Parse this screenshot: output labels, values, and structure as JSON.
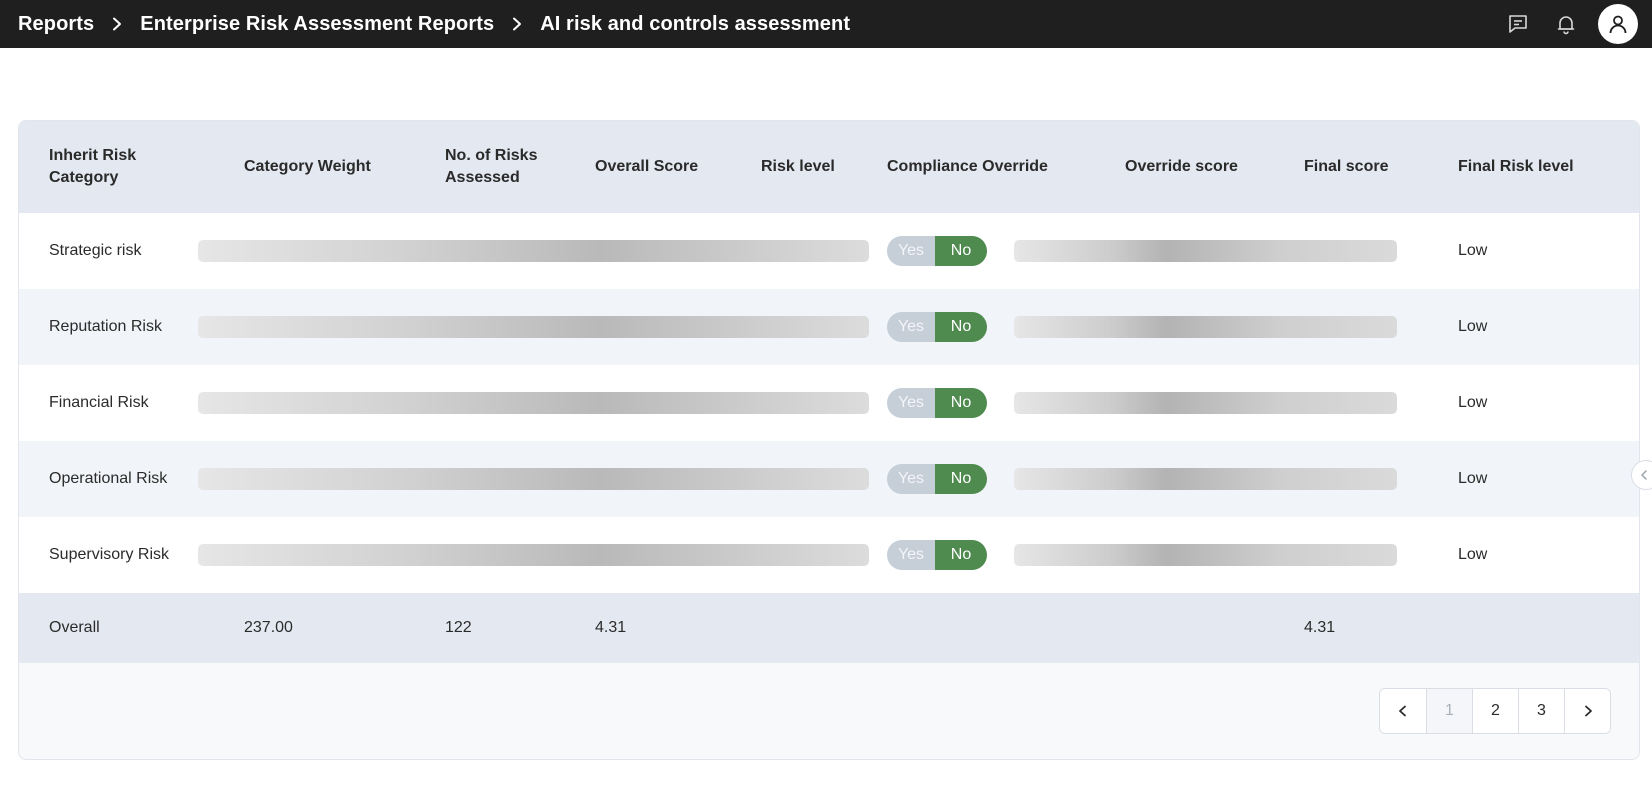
{
  "breadcrumb": {
    "items": [
      "Reports",
      "Enterprise Risk Assessment Reports",
      "AI risk and controls assessment"
    ]
  },
  "icons": {
    "separator": "chevron-right-icon",
    "messages": "message-icon",
    "notifications": "bell-icon",
    "profile": "user-icon",
    "prev": "chevron-left-icon",
    "next": "chevron-right-icon",
    "collapse": "chevron-left-icon"
  },
  "colors": {
    "topbar": "#1f1f1f",
    "header_row": "#e4e9f1",
    "toggle_no_active": "#4f8a4f",
    "toggle_yes_inactive": "#c6ced8"
  },
  "table": {
    "columns": [
      "Inherit Risk Category",
      "Category Weight",
      "No. of Risks Assessed",
      "Overall Score",
      "Risk level",
      "Compliance Override",
      "Override score",
      "Final score",
      "Final Risk level"
    ],
    "rows": [
      {
        "category": "Strategic risk",
        "override_yes": "Yes",
        "override_no": "No",
        "override_selected": "No",
        "final_risk_level": "Low"
      },
      {
        "category": "Reputation Risk",
        "override_yes": "Yes",
        "override_no": "No",
        "override_selected": "No",
        "final_risk_level": "Low"
      },
      {
        "category": "Financial Risk",
        "override_yes": "Yes",
        "override_no": "No",
        "override_selected": "No",
        "final_risk_level": "Low"
      },
      {
        "category": "Operational Risk",
        "override_yes": "Yes",
        "override_no": "No",
        "override_selected": "No",
        "final_risk_level": "Low"
      },
      {
        "category": "Supervisory Risk",
        "override_yes": "Yes",
        "override_no": "No",
        "override_selected": "No",
        "final_risk_level": "Low"
      }
    ],
    "overall": {
      "label": "Overall",
      "category_weight": "237.00",
      "risks_assessed": "122",
      "overall_score": "4.31",
      "final_score": "4.31"
    }
  },
  "pagination": {
    "pages": [
      "1",
      "2",
      "3"
    ],
    "current": "1"
  }
}
